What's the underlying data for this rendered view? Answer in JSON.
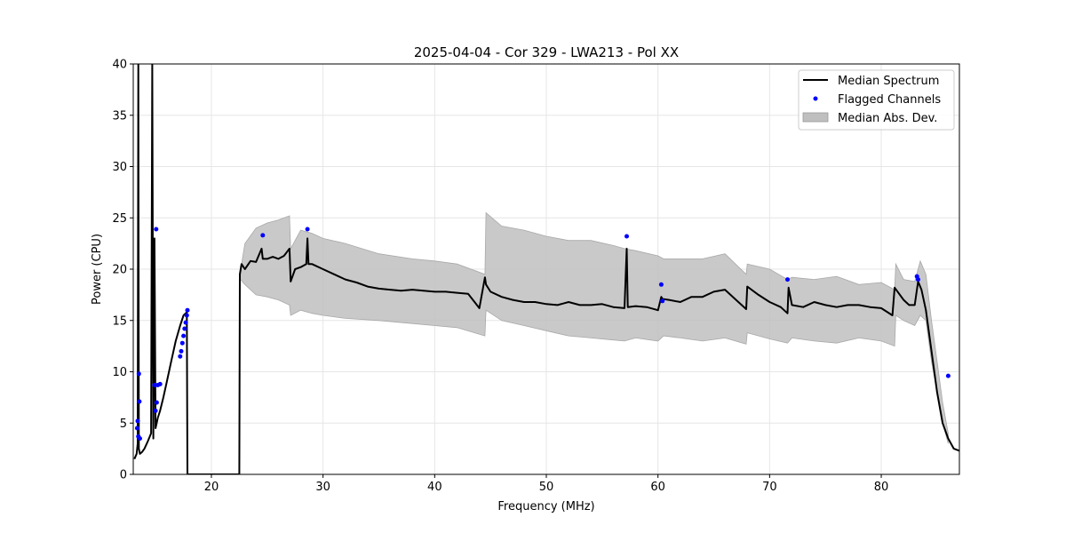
{
  "chart_data": {
    "type": "line",
    "title": "2025-04-04 - Cor 329 - LWA213 - Pol XX",
    "xlabel": "Frequency (MHz)",
    "ylabel": "Power (CPU)",
    "xlim": [
      13,
      87
    ],
    "ylim": [
      0,
      40
    ],
    "xticks": [
      20,
      30,
      40,
      50,
      60,
      70,
      80
    ],
    "yticks": [
      0,
      5,
      10,
      15,
      20,
      25,
      30,
      35,
      40
    ],
    "grid": true,
    "legend_position": "top-right",
    "legend": [
      "Median Spectrum",
      "Flagged Channels",
      "Median Abs. Dev."
    ],
    "colors": {
      "median": "#000000",
      "flagged": "#0000ff",
      "mad_fill": "#bfbfbf",
      "grid": "#e6e6e6"
    },
    "median_spectrum": {
      "name": "Median Spectrum",
      "x": [
        13.1,
        13.3,
        13.4,
        13.45,
        13.5,
        13.6,
        13.8,
        14.0,
        14.3,
        14.6,
        14.7,
        14.8,
        14.9,
        15.0,
        15.1,
        15.2,
        15.4,
        15.7,
        16.0,
        16.4,
        16.8,
        17.2,
        17.5,
        17.8,
        17.85,
        17.9,
        22.5,
        22.55,
        22.7,
        23.0,
        23.5,
        24.0,
        24.5,
        24.6,
        25.0,
        25.5,
        26.0,
        26.5,
        27.0,
        27.1,
        27.5,
        28.0,
        28.5,
        28.6,
        28.7,
        29.0,
        30.0,
        31.0,
        32.0,
        33.0,
        34.0,
        35.0,
        36.0,
        37.0,
        38.0,
        39.0,
        40.0,
        41.0,
        42.0,
        43.0,
        44.0,
        44.5,
        44.6,
        45.0,
        46.0,
        47.0,
        48.0,
        49.0,
        50.0,
        51.0,
        52.0,
        53.0,
        54.0,
        55.0,
        56.0,
        57.0,
        57.2,
        57.3,
        58.0,
        59.0,
        60.0,
        60.3,
        60.4,
        61.0,
        62.0,
        63.0,
        64.0,
        65.0,
        66.0,
        67.0,
        67.9,
        68.0,
        69.0,
        70.0,
        71.0,
        71.6,
        71.7,
        72.0,
        73.0,
        74.0,
        75.0,
        76.0,
        77.0,
        78.0,
        79.0,
        80.0,
        81.0,
        81.2,
        82.0,
        82.5,
        83.0,
        83.3,
        83.6,
        84.0,
        84.5,
        85.0,
        85.5,
        86.0,
        86.5,
        87.0
      ],
      "y": [
        1.5,
        2.0,
        3.0,
        40.0,
        2.5,
        2.0,
        2.2,
        2.5,
        3.2,
        4.0,
        40.0,
        3.5,
        23.0,
        4.5,
        5.0,
        5.5,
        6.2,
        7.5,
        9.0,
        11.0,
        13.0,
        14.5,
        15.5,
        15.8,
        0.0,
        0.0,
        0.0,
        19.5,
        20.5,
        20.0,
        20.8,
        20.7,
        22.0,
        21.0,
        21.0,
        21.2,
        21.0,
        21.3,
        22.0,
        18.8,
        20.0,
        20.2,
        20.5,
        23.0,
        20.5,
        20.5,
        20.0,
        19.5,
        19.0,
        18.7,
        18.3,
        18.1,
        18.0,
        17.9,
        18.0,
        17.9,
        17.8,
        17.8,
        17.7,
        17.6,
        16.2,
        19.2,
        18.5,
        17.8,
        17.3,
        17.0,
        16.8,
        16.8,
        16.6,
        16.5,
        16.8,
        16.5,
        16.5,
        16.6,
        16.3,
        16.2,
        22.0,
        16.3,
        16.4,
        16.3,
        16.0,
        17.3,
        17.1,
        17.0,
        16.8,
        17.3,
        17.3,
        17.8,
        18.0,
        17.0,
        16.1,
        18.3,
        17.5,
        16.8,
        16.3,
        15.7,
        18.2,
        16.5,
        16.3,
        16.8,
        16.5,
        16.3,
        16.5,
        16.5,
        16.3,
        16.2,
        15.5,
        18.2,
        17.0,
        16.5,
        16.5,
        18.8,
        18.0,
        16.0,
        12.0,
        8.0,
        5.0,
        3.5,
        2.5,
        2.3
      ]
    },
    "mad_band": {
      "name": "Median Abs. Dev.",
      "x": [
        22.6,
        23.0,
        24.0,
        25.0,
        26.0,
        27.0,
        27.1,
        28.0,
        29.0,
        30.0,
        32.0,
        35.0,
        38.0,
        40.0,
        42.0,
        44.5,
        44.6,
        46.0,
        48.0,
        50.0,
        52.0,
        54.0,
        56.0,
        57.0,
        58.0,
        60.0,
        60.5,
        62.0,
        64.0,
        66.0,
        67.9,
        68.0,
        70.0,
        71.6,
        72.0,
        74.0,
        76.0,
        78.0,
        80.0,
        81.2,
        81.3,
        82.0,
        83.0,
        83.5,
        84.0,
        84.5,
        85.0,
        85.5,
        86.0
      ],
      "upper": [
        19.8,
        22.5,
        24.0,
        24.5,
        24.8,
        25.2,
        22.0,
        23.8,
        23.5,
        23.0,
        22.5,
        21.5,
        21.0,
        20.8,
        20.5,
        19.5,
        25.5,
        24.2,
        23.8,
        23.2,
        22.8,
        22.8,
        22.3,
        22.0,
        21.8,
        21.3,
        21.0,
        21.0,
        21.0,
        21.5,
        19.5,
        20.5,
        20.0,
        19.0,
        19.2,
        19.0,
        19.3,
        18.5,
        18.7,
        18.0,
        20.5,
        19.0,
        18.8,
        20.8,
        19.5,
        15.0,
        11.0,
        7.0,
        4.0
      ],
      "lower": [
        19.0,
        18.5,
        17.5,
        17.3,
        17.0,
        16.5,
        15.5,
        16.0,
        15.7,
        15.5,
        15.2,
        15.0,
        14.7,
        14.5,
        14.3,
        13.5,
        16.0,
        15.0,
        14.5,
        14.0,
        13.5,
        13.3,
        13.1,
        13.0,
        13.3,
        13.0,
        13.5,
        13.3,
        13.0,
        13.3,
        12.7,
        13.8,
        13.2,
        12.8,
        13.3,
        13.0,
        12.8,
        13.3,
        13.0,
        12.5,
        15.5,
        15.0,
        14.5,
        15.5,
        15.0,
        11.0,
        8.0,
        5.0,
        3.0
      ]
    },
    "flagged_channels": {
      "name": "Flagged Channels",
      "x": [
        13.35,
        13.4,
        13.45,
        13.5,
        13.55,
        13.6,
        14.9,
        15.0,
        15.05,
        15.1,
        15.2,
        15.4,
        17.2,
        17.3,
        17.4,
        17.5,
        17.6,
        17.7,
        17.8,
        17.85,
        24.6,
        28.6,
        57.2,
        60.3,
        60.4,
        71.6,
        83.2,
        83.3,
        86.0
      ],
      "y": [
        4.5,
        5.2,
        3.7,
        9.8,
        7.1,
        3.5,
        8.7,
        6.2,
        23.9,
        7.0,
        8.7,
        8.8,
        11.5,
        12.0,
        12.8,
        13.5,
        14.2,
        14.8,
        15.5,
        16.0,
        23.3,
        23.9,
        23.2,
        18.5,
        16.9,
        19.0,
        19.3,
        19.0,
        9.6
      ]
    }
  }
}
